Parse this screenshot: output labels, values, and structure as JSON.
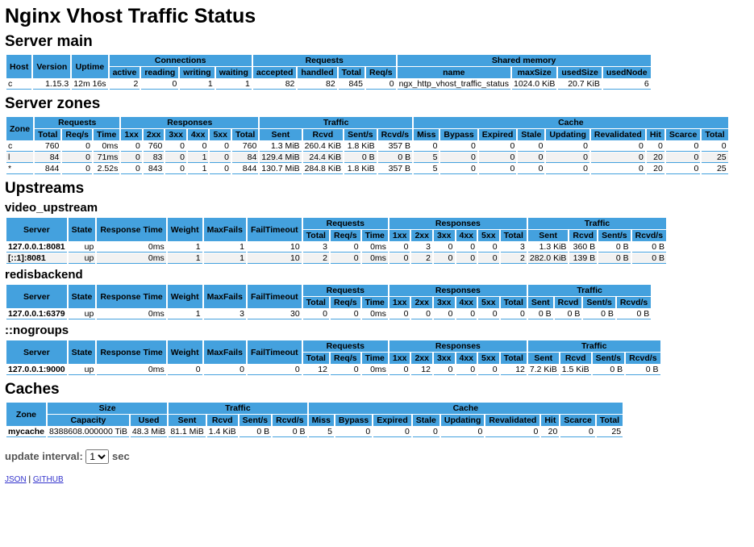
{
  "title": "Nginx Vhost Traffic Status",
  "server_main": {
    "heading": "Server main",
    "header": [
      {
        "label": "Host"
      },
      {
        "label": "Version"
      },
      {
        "label": "Uptime"
      },
      {
        "label": "Connections",
        "columns": [
          "active",
          "reading",
          "writing",
          "waiting"
        ]
      },
      {
        "label": "Requests",
        "columns": [
          "accepted",
          "handled",
          "Total",
          "Req/s"
        ]
      },
      {
        "label": "Shared memory",
        "columns": [
          "name",
          "maxSize",
          "usedSize",
          "usedNode"
        ]
      }
    ],
    "rows": [
      [
        "c",
        "1.15.3",
        "12m 16s",
        2,
        0,
        1,
        1,
        82,
        82,
        845,
        0,
        "ngx_http_vhost_traffic_status",
        "1024.0 KiB",
        "20.7 KiB",
        6
      ]
    ]
  },
  "server_zones": {
    "heading": "Server zones",
    "header": [
      {
        "label": "Zone"
      },
      {
        "label": "Requests",
        "columns": [
          "Total",
          "Req/s",
          "Time"
        ]
      },
      {
        "label": "Responses",
        "columns": [
          "1xx",
          "2xx",
          "3xx",
          "4xx",
          "5xx",
          "Total"
        ]
      },
      {
        "label": "Traffic",
        "columns": [
          "Sent",
          "Rcvd",
          "Sent/s",
          "Rcvd/s"
        ]
      },
      {
        "label": "Cache",
        "columns": [
          "Miss",
          "Bypass",
          "Expired",
          "Stale",
          "Updating",
          "Revalidated",
          "Hit",
          "Scarce",
          "Total"
        ]
      }
    ],
    "rows": [
      [
        "c",
        760,
        0,
        "0ms",
        0,
        760,
        0,
        0,
        0,
        760,
        "1.3 MiB",
        "260.4 KiB",
        "1.8 KiB",
        "357 B",
        0,
        0,
        0,
        0,
        0,
        0,
        0,
        0,
        0
      ],
      [
        "l",
        84,
        0,
        "71ms",
        0,
        83,
        0,
        1,
        0,
        84,
        "129.4 MiB",
        "24.4 KiB",
        "0 B",
        "0 B",
        5,
        0,
        0,
        0,
        0,
        0,
        20,
        0,
        25
      ],
      [
        "*",
        844,
        0,
        "2.52s",
        0,
        843,
        0,
        1,
        0,
        844,
        "130.7 MiB",
        "284.8 KiB",
        "1.8 KiB",
        "357 B",
        5,
        0,
        0,
        0,
        0,
        0,
        20,
        0,
        25
      ]
    ]
  },
  "upstreams": {
    "heading": "Upstreams",
    "groups": [
      {
        "name": "video_upstream",
        "header": [
          {
            "label": "Server"
          },
          {
            "label": "State"
          },
          {
            "label": "Response Time"
          },
          {
            "label": "Weight"
          },
          {
            "label": "MaxFails"
          },
          {
            "label": "FailTimeout"
          },
          {
            "label": "Requests",
            "columns": [
              "Total",
              "Req/s",
              "Time"
            ]
          },
          {
            "label": "Responses",
            "columns": [
              "1xx",
              "2xx",
              "3xx",
              "4xx",
              "5xx",
              "Total"
            ]
          },
          {
            "label": "Traffic",
            "columns": [
              "Sent",
              "Rcvd",
              "Sent/s",
              "Rcvd/s"
            ]
          }
        ],
        "rows": [
          [
            "127.0.0.1:8081",
            "up",
            "0ms",
            1,
            1,
            10,
            3,
            0,
            "0ms",
            0,
            3,
            0,
            0,
            0,
            3,
            "1.3 KiB",
            "360 B",
            "0 B",
            "0 B"
          ],
          [
            "[::1]:8081",
            "up",
            "0ms",
            1,
            1,
            10,
            2,
            0,
            "0ms",
            0,
            2,
            0,
            0,
            0,
            2,
            "282.0 KiB",
            "139 B",
            "0 B",
            "0 B"
          ]
        ]
      },
      {
        "name": "redisbackend",
        "header": [
          {
            "label": "Server"
          },
          {
            "label": "State"
          },
          {
            "label": "Response Time"
          },
          {
            "label": "Weight"
          },
          {
            "label": "MaxFails"
          },
          {
            "label": "FailTimeout"
          },
          {
            "label": "Requests",
            "columns": [
              "Total",
              "Req/s",
              "Time"
            ]
          },
          {
            "label": "Responses",
            "columns": [
              "1xx",
              "2xx",
              "3xx",
              "4xx",
              "5xx",
              "Total"
            ]
          },
          {
            "label": "Traffic",
            "columns": [
              "Sent",
              "Rcvd",
              "Sent/s",
              "Rcvd/s"
            ]
          }
        ],
        "rows": [
          [
            "127.0.0.1:6379",
            "up",
            "0ms",
            1,
            3,
            30,
            0,
            0,
            "0ms",
            0,
            0,
            0,
            0,
            0,
            0,
            "0 B",
            "0 B",
            "0 B",
            "0 B"
          ]
        ]
      },
      {
        "name": "::nogroups",
        "header": [
          {
            "label": "Server"
          },
          {
            "label": "State"
          },
          {
            "label": "Response Time"
          },
          {
            "label": "Weight"
          },
          {
            "label": "MaxFails"
          },
          {
            "label": "FailTimeout"
          },
          {
            "label": "Requests",
            "columns": [
              "Total",
              "Req/s",
              "Time"
            ]
          },
          {
            "label": "Responses",
            "columns": [
              "1xx",
              "2xx",
              "3xx",
              "4xx",
              "5xx",
              "Total"
            ]
          },
          {
            "label": "Traffic",
            "columns": [
              "Sent",
              "Rcvd",
              "Sent/s",
              "Rcvd/s"
            ]
          }
        ],
        "rows": [
          [
            "127.0.0.1:9000",
            "up",
            "0ms",
            0,
            0,
            0,
            12,
            0,
            "0ms",
            0,
            12,
            0,
            0,
            0,
            12,
            "7.2 KiB",
            "1.5 KiB",
            "0 B",
            "0 B"
          ]
        ]
      }
    ]
  },
  "caches": {
    "heading": "Caches",
    "header": [
      {
        "label": "Zone"
      },
      {
        "label": "Size",
        "columns": [
          "Capacity",
          "Used"
        ]
      },
      {
        "label": "Traffic",
        "columns": [
          "Sent",
          "Rcvd",
          "Sent/s",
          "Rcvd/s"
        ]
      },
      {
        "label": "Cache",
        "columns": [
          "Miss",
          "Bypass",
          "Expired",
          "Stale",
          "Updating",
          "Revalidated",
          "Hit",
          "Scarce",
          "Total"
        ]
      }
    ],
    "rows": [
      [
        "mycache",
        "8388608.000000 TiB",
        "48.3 MiB",
        "81.1 MiB",
        "1.4 KiB",
        "0 B",
        "0 B",
        5,
        0,
        0,
        0,
        0,
        0,
        20,
        0,
        25
      ]
    ]
  },
  "footer": {
    "interval_label": "update interval:",
    "interval": "1",
    "unit": "sec",
    "links": [
      "JSON",
      "GITHUB"
    ],
    "separator": "|"
  }
}
